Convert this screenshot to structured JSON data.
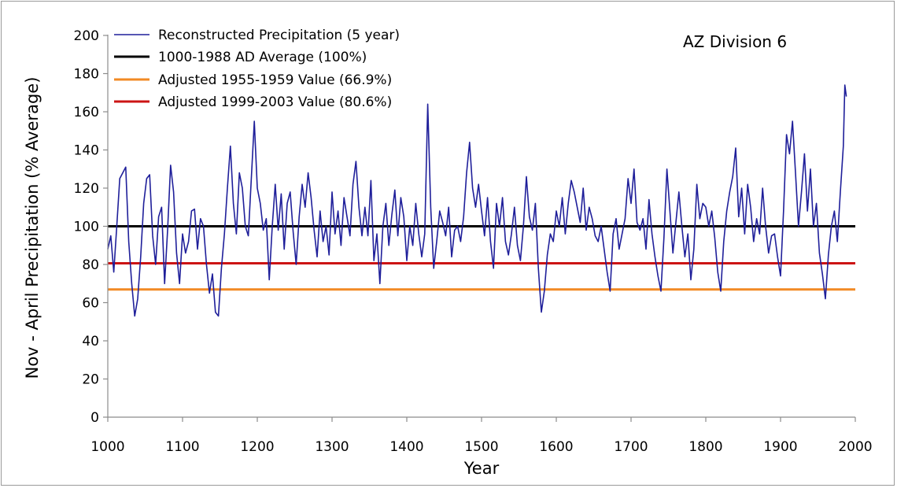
{
  "chart_data": {
    "type": "line",
    "title": "",
    "annotation": "AZ Division 6",
    "xlabel": "Year",
    "ylabel": "Nov - April Precipitation (% Average)",
    "xlim": [
      1000,
      2000
    ],
    "ylim": [
      0,
      200
    ],
    "x_ticks": [
      1000,
      1100,
      1200,
      1300,
      1400,
      1500,
      1600,
      1700,
      1800,
      1900,
      2000
    ],
    "y_ticks": [
      0,
      20,
      40,
      60,
      80,
      100,
      120,
      140,
      160,
      180,
      200
    ],
    "grid": false,
    "legend_position": "top-left",
    "series": [
      {
        "name": "Reconstructed Precipitation (5 year)",
        "color": "#1f1f9a",
        "points": [
          [
            1000,
            88
          ],
          [
            1004,
            95
          ],
          [
            1008,
            76
          ],
          [
            1012,
            100
          ],
          [
            1016,
            125
          ],
          [
            1020,
            128
          ],
          [
            1024,
            131
          ],
          [
            1028,
            92
          ],
          [
            1032,
            70
          ],
          [
            1036,
            53
          ],
          [
            1040,
            62
          ],
          [
            1044,
            84
          ],
          [
            1048,
            112
          ],
          [
            1052,
            125
          ],
          [
            1056,
            127
          ],
          [
            1060,
            95
          ],
          [
            1064,
            80
          ],
          [
            1068,
            105
          ],
          [
            1072,
            110
          ],
          [
            1076,
            70
          ],
          [
            1080,
            98
          ],
          [
            1084,
            132
          ],
          [
            1088,
            118
          ],
          [
            1092,
            86
          ],
          [
            1096,
            70
          ],
          [
            1100,
            96
          ],
          [
            1104,
            86
          ],
          [
            1108,
            92
          ],
          [
            1112,
            108
          ],
          [
            1116,
            109
          ],
          [
            1120,
            88
          ],
          [
            1124,
            104
          ],
          [
            1128,
            100
          ],
          [
            1132,
            80
          ],
          [
            1136,
            65
          ],
          [
            1140,
            75
          ],
          [
            1144,
            55
          ],
          [
            1148,
            53
          ],
          [
            1152,
            78
          ],
          [
            1156,
            96
          ],
          [
            1160,
            120
          ],
          [
            1164,
            142
          ],
          [
            1168,
            112
          ],
          [
            1172,
            96
          ],
          [
            1176,
            128
          ],
          [
            1180,
            120
          ],
          [
            1184,
            100
          ],
          [
            1188,
            95
          ],
          [
            1192,
            125
          ],
          [
            1196,
            155
          ],
          [
            1200,
            120
          ],
          [
            1204,
            112
          ],
          [
            1208,
            98
          ],
          [
            1212,
            104
          ],
          [
            1216,
            72
          ],
          [
            1220,
            100
          ],
          [
            1224,
            122
          ],
          [
            1228,
            98
          ],
          [
            1232,
            117
          ],
          [
            1236,
            88
          ],
          [
            1240,
            112
          ],
          [
            1244,
            118
          ],
          [
            1248,
            97
          ],
          [
            1252,
            80
          ],
          [
            1256,
            105
          ],
          [
            1260,
            122
          ],
          [
            1264,
            110
          ],
          [
            1268,
            128
          ],
          [
            1272,
            115
          ],
          [
            1276,
            98
          ],
          [
            1280,
            84
          ],
          [
            1284,
            108
          ],
          [
            1288,
            92
          ],
          [
            1292,
            100
          ],
          [
            1296,
            85
          ],
          [
            1300,
            118
          ],
          [
            1304,
            96
          ],
          [
            1308,
            108
          ],
          [
            1312,
            90
          ],
          [
            1316,
            115
          ],
          [
            1320,
            105
          ],
          [
            1324,
            95
          ],
          [
            1328,
            122
          ],
          [
            1332,
            134
          ],
          [
            1336,
            110
          ],
          [
            1340,
            95
          ],
          [
            1344,
            110
          ],
          [
            1348,
            95
          ],
          [
            1352,
            124
          ],
          [
            1356,
            82
          ],
          [
            1360,
            96
          ],
          [
            1364,
            70
          ],
          [
            1368,
            100
          ],
          [
            1372,
            112
          ],
          [
            1376,
            90
          ],
          [
            1380,
            106
          ],
          [
            1384,
            119
          ],
          [
            1388,
            95
          ],
          [
            1392,
            115
          ],
          [
            1396,
            105
          ],
          [
            1400,
            82
          ],
          [
            1404,
            100
          ],
          [
            1408,
            90
          ],
          [
            1412,
            112
          ],
          [
            1416,
            96
          ],
          [
            1420,
            84
          ],
          [
            1424,
            96
          ],
          [
            1428,
            164
          ],
          [
            1432,
            110
          ],
          [
            1436,
            78
          ],
          [
            1440,
            92
          ],
          [
            1444,
            108
          ],
          [
            1448,
            102
          ],
          [
            1452,
            95
          ],
          [
            1456,
            110
          ],
          [
            1460,
            84
          ],
          [
            1464,
            98
          ],
          [
            1468,
            100
          ],
          [
            1472,
            92
          ],
          [
            1476,
            105
          ],
          [
            1480,
            128
          ],
          [
            1484,
            144
          ],
          [
            1488,
            120
          ],
          [
            1492,
            110
          ],
          [
            1496,
            122
          ],
          [
            1500,
            108
          ],
          [
            1504,
            95
          ],
          [
            1508,
            115
          ],
          [
            1512,
            92
          ],
          [
            1516,
            78
          ],
          [
            1520,
            112
          ],
          [
            1524,
            100
          ],
          [
            1528,
            115
          ],
          [
            1532,
            92
          ],
          [
            1536,
            85
          ],
          [
            1540,
            96
          ],
          [
            1544,
            110
          ],
          [
            1548,
            90
          ],
          [
            1552,
            82
          ],
          [
            1556,
            100
          ],
          [
            1560,
            126
          ],
          [
            1564,
            105
          ],
          [
            1568,
            98
          ],
          [
            1572,
            112
          ],
          [
            1576,
            78
          ],
          [
            1580,
            55
          ],
          [
            1584,
            66
          ],
          [
            1588,
            85
          ],
          [
            1592,
            96
          ],
          [
            1596,
            92
          ],
          [
            1600,
            108
          ],
          [
            1604,
            100
          ],
          [
            1608,
            115
          ],
          [
            1612,
            96
          ],
          [
            1616,
            112
          ],
          [
            1620,
            124
          ],
          [
            1624,
            118
          ],
          [
            1628,
            110
          ],
          [
            1632,
            102
          ],
          [
            1636,
            120
          ],
          [
            1640,
            98
          ],
          [
            1644,
            110
          ],
          [
            1648,
            104
          ],
          [
            1652,
            95
          ],
          [
            1656,
            92
          ],
          [
            1660,
            100
          ],
          [
            1664,
            88
          ],
          [
            1668,
            76
          ],
          [
            1672,
            66
          ],
          [
            1676,
            96
          ],
          [
            1680,
            104
          ],
          [
            1684,
            88
          ],
          [
            1688,
            96
          ],
          [
            1692,
            104
          ],
          [
            1696,
            125
          ],
          [
            1700,
            112
          ],
          [
            1704,
            130
          ],
          [
            1708,
            102
          ],
          [
            1712,
            98
          ],
          [
            1716,
            104
          ],
          [
            1720,
            88
          ],
          [
            1724,
            114
          ],
          [
            1728,
            96
          ],
          [
            1732,
            84
          ],
          [
            1736,
            74
          ],
          [
            1740,
            66
          ],
          [
            1744,
            94
          ],
          [
            1748,
            130
          ],
          [
            1752,
            108
          ],
          [
            1756,
            86
          ],
          [
            1760,
            102
          ],
          [
            1764,
            118
          ],
          [
            1768,
            100
          ],
          [
            1772,
            84
          ],
          [
            1776,
            96
          ],
          [
            1780,
            72
          ],
          [
            1784,
            88
          ],
          [
            1788,
            122
          ],
          [
            1792,
            104
          ],
          [
            1796,
            112
          ],
          [
            1800,
            110
          ],
          [
            1804,
            100
          ],
          [
            1808,
            108
          ],
          [
            1812,
            94
          ],
          [
            1816,
            76
          ],
          [
            1820,
            66
          ],
          [
            1824,
            92
          ],
          [
            1828,
            108
          ],
          [
            1832,
            118
          ],
          [
            1836,
            126
          ],
          [
            1840,
            141
          ],
          [
            1844,
            105
          ],
          [
            1848,
            120
          ],
          [
            1852,
            96
          ],
          [
            1856,
            122
          ],
          [
            1860,
            110
          ],
          [
            1864,
            92
          ],
          [
            1868,
            104
          ],
          [
            1872,
            96
          ],
          [
            1876,
            120
          ],
          [
            1880,
            100
          ],
          [
            1884,
            86
          ],
          [
            1888,
            95
          ],
          [
            1892,
            96
          ],
          [
            1896,
            84
          ],
          [
            1900,
            74
          ],
          [
            1904,
            108
          ],
          [
            1908,
            148
          ],
          [
            1912,
            138
          ],
          [
            1916,
            155
          ],
          [
            1920,
            128
          ],
          [
            1924,
            100
          ],
          [
            1928,
            118
          ],
          [
            1932,
            138
          ],
          [
            1936,
            108
          ],
          [
            1940,
            130
          ],
          [
            1944,
            100
          ],
          [
            1948,
            112
          ],
          [
            1952,
            86
          ],
          [
            1956,
            75
          ],
          [
            1960,
            62
          ],
          [
            1964,
            85
          ],
          [
            1968,
            100
          ],
          [
            1972,
            108
          ],
          [
            1976,
            92
          ],
          [
            1980,
            118
          ],
          [
            1984,
            142
          ],
          [
            1986,
            174
          ],
          [
            1988,
            168
          ]
        ]
      },
      {
        "name": "1000-1988 AD Average (100%)",
        "color": "#000000",
        "constant": 100
      },
      {
        "name": "Adjusted 1955-1959 Value (66.9%)",
        "color": "#f28a24",
        "constant": 66.9
      },
      {
        "name": "Adjusted 1999-2003 Value (80.6%)",
        "color": "#cc1414",
        "constant": 80.6
      }
    ]
  }
}
